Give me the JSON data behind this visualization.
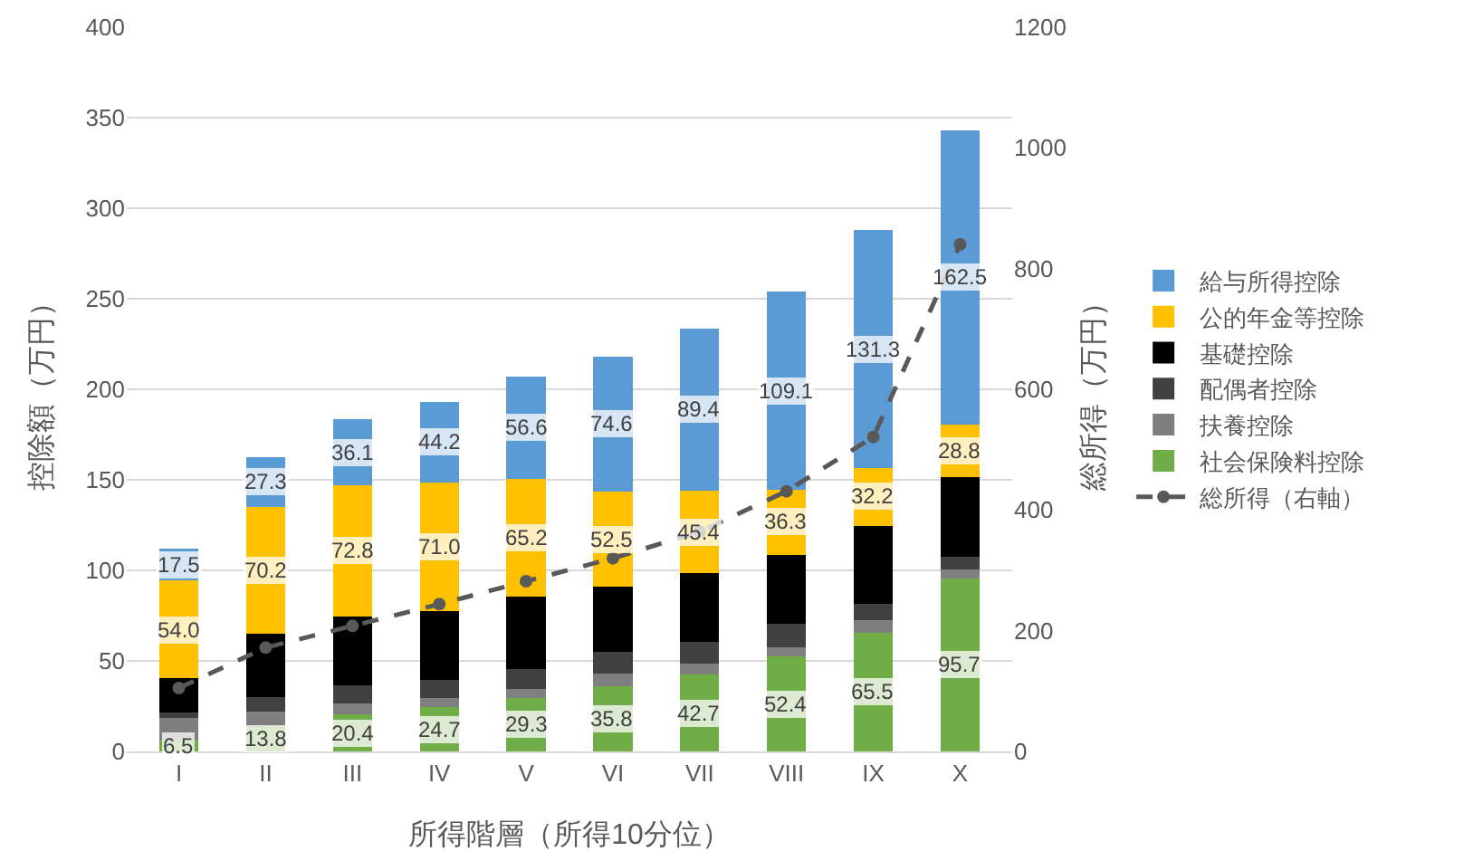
{
  "chart_data": {
    "type": "bar",
    "stacked": true,
    "xlabel": "所得階層（所得10分位）",
    "ylabel": "控除額（万円）",
    "y2label": "総所得（万円）",
    "categories": [
      "I",
      "II",
      "III",
      "IV",
      "V",
      "VI",
      "VII",
      "VIII",
      "IX",
      "X"
    ],
    "series": [
      {
        "name": "社会保険料控除",
        "color": "#70ad47",
        "values": [
          6.5,
          13.8,
          20.4,
          24.7,
          29.3,
          35.8,
          42.7,
          52.4,
          65.5,
          95.7
        ],
        "value_labels": [
          "6.5",
          "13.8",
          "20.4",
          "24.7",
          "29.3",
          "35.8",
          "42.7",
          "52.4",
          "65.5",
          "95.7"
        ]
      },
      {
        "name": "扶養控除",
        "color": "#7f7f7f",
        "values": [
          12,
          8,
          6,
          5,
          5,
          7,
          6,
          5,
          7,
          5
        ]
      },
      {
        "name": "配偶者控除",
        "color": "#404040",
        "values": [
          3,
          8,
          10,
          10,
          11,
          12,
          12,
          13,
          9,
          7
        ]
      },
      {
        "name": "基礎控除",
        "color": "#000000",
        "values": [
          19,
          35,
          38,
          38,
          40,
          36,
          38,
          38,
          43,
          44
        ]
      },
      {
        "name": "公的年金等控除",
        "color": "#ffc000",
        "values": [
          54.0,
          70.2,
          72.8,
          71.0,
          65.2,
          52.5,
          45.4,
          36.3,
          32.2,
          28.8
        ],
        "value_labels": [
          "54.0",
          "70.2",
          "72.8",
          "71.0",
          "65.2",
          "52.5",
          "45.4",
          "36.3",
          "32.2",
          "28.8"
        ]
      },
      {
        "name": "給与所得控除",
        "color": "#5b9bd5",
        "values": [
          17.5,
          27.3,
          36.1,
          44.2,
          56.6,
          74.6,
          89.4,
          109.1,
          131.3,
          162.5
        ],
        "value_labels": [
          "17.5",
          "27.3",
          "36.1",
          "44.2",
          "56.6",
          "74.6",
          "89.4",
          "109.1",
          "131.3",
          "162.5"
        ]
      },
      {
        "name": "総所得（右軸）",
        "type": "line",
        "axis": "y2",
        "color": "#595959",
        "line_style": "dashed",
        "marker": "circle",
        "values": [
          105,
          172,
          208,
          244,
          282,
          320,
          364,
          431,
          521,
          840
        ]
      }
    ],
    "ylim": [
      0,
      400
    ],
    "yticks": [
      0,
      50,
      100,
      150,
      200,
      250,
      300,
      350,
      400
    ],
    "y2lim": [
      0,
      1200
    ],
    "y2ticks": [
      0,
      200,
      400,
      600,
      800,
      1000,
      1200
    ],
    "grid": "y",
    "legend": "right"
  }
}
